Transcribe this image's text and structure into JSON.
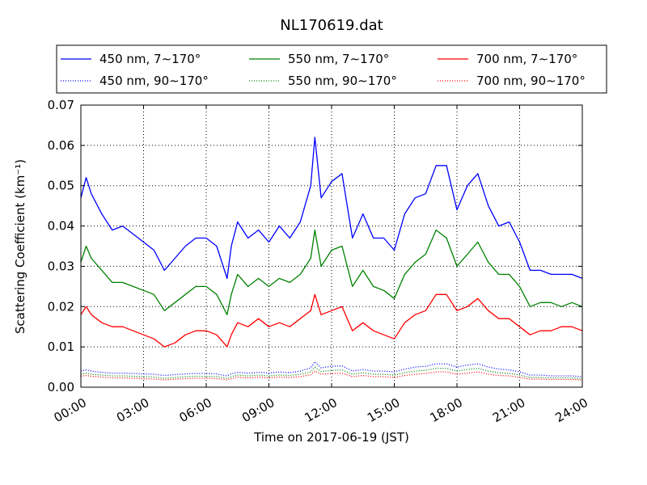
{
  "chart_data": {
    "type": "line",
    "title": "NL170619.dat",
    "xlabel": "Time on 2017-06-19 (JST)",
    "ylabel": "Scattering Coefficient (km⁻¹)",
    "xlim_hours": [
      0,
      24
    ],
    "ylim": [
      0,
      0.07
    ],
    "grid": true,
    "legend_position": "top",
    "x_ticks": [
      {
        "value": 0,
        "label": "00:00"
      },
      {
        "value": 3,
        "label": "03:00"
      },
      {
        "value": 6,
        "label": "06:00"
      },
      {
        "value": 9,
        "label": "09:00"
      },
      {
        "value": 12,
        "label": "12:00"
      },
      {
        "value": 15,
        "label": "15:00"
      },
      {
        "value": 18,
        "label": "18:00"
      },
      {
        "value": 21,
        "label": "21:00"
      },
      {
        "value": 24,
        "label": "24:00"
      }
    ],
    "y_ticks": [
      {
        "value": 0.0,
        "label": "0.00"
      },
      {
        "value": 0.01,
        "label": "0.01"
      },
      {
        "value": 0.02,
        "label": "0.02"
      },
      {
        "value": 0.03,
        "label": "0.03"
      },
      {
        "value": 0.04,
        "label": "0.04"
      },
      {
        "value": 0.05,
        "label": "0.05"
      },
      {
        "value": 0.06,
        "label": "0.06"
      },
      {
        "value": 0.07,
        "label": "0.07"
      }
    ],
    "x": [
      0,
      0.25,
      0.5,
      1,
      1.5,
      2,
      2.5,
      3,
      3.5,
      4,
      4.5,
      5,
      5.5,
      6,
      6.5,
      7,
      7.2,
      7.5,
      8,
      8.5,
      9,
      9.5,
      10,
      10.5,
      11,
      11.2,
      11.5,
      12,
      12.5,
      13,
      13.5,
      14,
      14.5,
      15,
      15.5,
      16,
      16.5,
      17,
      17.5,
      18,
      18.5,
      19,
      19.5,
      20,
      20.5,
      21,
      21.5,
      22,
      22.5,
      23,
      23.5,
      24
    ],
    "series": [
      {
        "name": "450 nm, 7∼170°",
        "color": "#0000ff",
        "style": "solid",
        "values": [
          0.047,
          0.052,
          0.048,
          0.043,
          0.039,
          0.04,
          0.038,
          0.036,
          0.034,
          0.029,
          0.032,
          0.035,
          0.037,
          0.037,
          0.035,
          0.027,
          0.035,
          0.041,
          0.037,
          0.039,
          0.036,
          0.04,
          0.037,
          0.041,
          0.05,
          0.062,
          0.047,
          0.051,
          0.053,
          0.037,
          0.043,
          0.037,
          0.037,
          0.034,
          0.043,
          0.047,
          0.048,
          0.055,
          0.055,
          0.044,
          0.05,
          0.053,
          0.045,
          0.04,
          0.041,
          0.036,
          0.029,
          0.029,
          0.028,
          0.028,
          0.028,
          0.027
        ]
      },
      {
        "name": "550 nm, 7∼170°",
        "color": "#008000",
        "style": "solid",
        "values": [
          0.031,
          0.035,
          0.032,
          0.029,
          0.026,
          0.026,
          0.025,
          0.024,
          0.023,
          0.019,
          0.021,
          0.023,
          0.025,
          0.025,
          0.023,
          0.018,
          0.023,
          0.028,
          0.025,
          0.027,
          0.025,
          0.027,
          0.026,
          0.028,
          0.032,
          0.039,
          0.03,
          0.034,
          0.035,
          0.025,
          0.029,
          0.025,
          0.024,
          0.022,
          0.028,
          0.031,
          0.033,
          0.039,
          0.037,
          0.03,
          0.033,
          0.036,
          0.031,
          0.028,
          0.028,
          0.025,
          0.02,
          0.021,
          0.021,
          0.02,
          0.021,
          0.02
        ]
      },
      {
        "name": "700 nm, 7∼170°",
        "color": "#ff0000",
        "style": "solid",
        "values": [
          0.018,
          0.02,
          0.018,
          0.016,
          0.015,
          0.015,
          0.014,
          0.013,
          0.012,
          0.01,
          0.011,
          0.013,
          0.014,
          0.014,
          0.013,
          0.01,
          0.013,
          0.016,
          0.015,
          0.017,
          0.015,
          0.016,
          0.015,
          0.017,
          0.019,
          0.023,
          0.018,
          0.019,
          0.02,
          0.014,
          0.016,
          0.014,
          0.013,
          0.012,
          0.016,
          0.018,
          0.019,
          0.023,
          0.023,
          0.019,
          0.02,
          0.022,
          0.019,
          0.017,
          0.017,
          0.015,
          0.013,
          0.014,
          0.014,
          0.015,
          0.015,
          0.014
        ]
      },
      {
        "name": "450 nm, 90∼170°",
        "color": "#0000ff",
        "style": "dotted",
        "values": [
          0.004,
          0.0043,
          0.004,
          0.0037,
          0.0035,
          0.0035,
          0.0034,
          0.0033,
          0.0032,
          0.0029,
          0.0031,
          0.0033,
          0.0034,
          0.0034,
          0.0033,
          0.0028,
          0.0033,
          0.0037,
          0.0035,
          0.0037,
          0.0035,
          0.0038,
          0.0036,
          0.004,
          0.0048,
          0.0063,
          0.0048,
          0.0052,
          0.0053,
          0.004,
          0.0044,
          0.004,
          0.004,
          0.0038,
          0.0045,
          0.005,
          0.0052,
          0.0058,
          0.0058,
          0.005,
          0.0055,
          0.0058,
          0.005,
          0.0045,
          0.0043,
          0.0038,
          0.003,
          0.003,
          0.0028,
          0.0028,
          0.0028,
          0.0026
        ]
      },
      {
        "name": "550 nm, 90∼170°",
        "color": "#008000",
        "style": "dotted",
        "values": [
          0.0032,
          0.0035,
          0.0032,
          0.003,
          0.0028,
          0.0028,
          0.0027,
          0.0026,
          0.0025,
          0.0022,
          0.0024,
          0.0026,
          0.0027,
          0.0027,
          0.0026,
          0.0022,
          0.0026,
          0.003,
          0.0028,
          0.003,
          0.0028,
          0.003,
          0.0029,
          0.0032,
          0.0038,
          0.005,
          0.0039,
          0.0042,
          0.0043,
          0.0032,
          0.0036,
          0.0032,
          0.0032,
          0.003,
          0.0036,
          0.004,
          0.0042,
          0.0047,
          0.0047,
          0.004,
          0.0044,
          0.0047,
          0.004,
          0.0036,
          0.0034,
          0.003,
          0.0024,
          0.0024,
          0.0023,
          0.0023,
          0.0023,
          0.0021
        ]
      },
      {
        "name": "700 nm, 90∼170°",
        "color": "#ff0000",
        "style": "dotted",
        "values": [
          0.0027,
          0.0029,
          0.0027,
          0.0025,
          0.0023,
          0.0023,
          0.0022,
          0.0021,
          0.002,
          0.0018,
          0.002,
          0.0021,
          0.0022,
          0.0022,
          0.0021,
          0.0018,
          0.0021,
          0.0025,
          0.0023,
          0.0025,
          0.0023,
          0.0025,
          0.0024,
          0.0026,
          0.0031,
          0.004,
          0.0032,
          0.0034,
          0.0035,
          0.0026,
          0.0029,
          0.0026,
          0.0026,
          0.0024,
          0.0029,
          0.0032,
          0.0034,
          0.0038,
          0.0038,
          0.0032,
          0.0035,
          0.0038,
          0.0032,
          0.0029,
          0.0028,
          0.0024,
          0.002,
          0.002,
          0.0019,
          0.0019,
          0.0019,
          0.0018
        ]
      }
    ],
    "legend_order": [
      0,
      1,
      2,
      3,
      4,
      5
    ]
  }
}
